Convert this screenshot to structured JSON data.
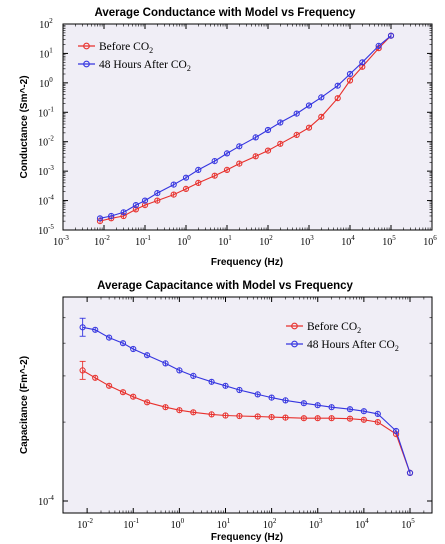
{
  "chart_data": [
    {
      "type": "line",
      "title": "Average Conductance with Model vs Frequency",
      "xlabel": "Frequency (Hz)",
      "ylabel": "Conductance (Sm^-2)",
      "xscale": "log",
      "yscale": "log",
      "x_tick_exponents": [
        "-3",
        "-2",
        "-1",
        "0",
        "1",
        "2",
        "3",
        "4",
        "5",
        "6"
      ],
      "y_tick_exponents": [
        "-5",
        "-4",
        "-3",
        "-2",
        "-1",
        "0",
        "1",
        "2"
      ],
      "xlim": [
        0.001,
        1000000
      ],
      "ylim": [
        1e-05,
        100
      ],
      "legend": "top-left",
      "series": [
        {
          "name": "Before CO2",
          "color": "#e8302c",
          "x": [
            0.008,
            0.015,
            0.03,
            0.06,
            0.1,
            0.2,
            0.5,
            1,
            2,
            5,
            10,
            20,
            50,
            100,
            200,
            500,
            1000,
            2000,
            5000,
            10000,
            20000,
            50000,
            100000
          ],
          "y": [
            2e-05,
            2.5e-05,
            3e-05,
            5e-05,
            7e-05,
            0.0001,
            0.00016,
            0.00025,
            0.0004,
            0.0007,
            0.0011,
            0.0018,
            0.0032,
            0.005,
            0.0085,
            0.017,
            0.03,
            0.07,
            0.3,
            1.2,
            3.5,
            15,
            40
          ]
        },
        {
          "name": "48 Hours After CO2",
          "color": "#3535e0",
          "x": [
            0.008,
            0.015,
            0.03,
            0.06,
            0.1,
            0.2,
            0.5,
            1,
            2,
            5,
            10,
            20,
            50,
            100,
            200,
            500,
            1000,
            2000,
            5000,
            10000,
            20000,
            50000,
            100000
          ],
          "y": [
            2.5e-05,
            3e-05,
            4e-05,
            7e-05,
            0.0001,
            0.00018,
            0.00035,
            0.0006,
            0.0011,
            0.0022,
            0.004,
            0.007,
            0.014,
            0.025,
            0.045,
            0.09,
            0.17,
            0.32,
            0.8,
            2,
            5,
            18,
            40
          ]
        }
      ]
    },
    {
      "type": "line",
      "title": "Average Capacitance with Model vs Frequency",
      "xlabel": "Frequency (Hz)",
      "ylabel": "Capacitance (Fm^-2)",
      "xscale": "log",
      "yscale": "log",
      "x_tick_exponents": [
        "-2",
        "-1",
        "0",
        "1",
        "2",
        "3",
        "4",
        "5"
      ],
      "y_tick_exponents": [
        "-4"
      ],
      "xlim": [
        0.003,
        300000
      ],
      "ylim": [
        9e-05,
        0.0006
      ],
      "legend": "top-right",
      "series": [
        {
          "name": "Before CO2",
          "color": "#e8302c",
          "x": [
            0.008,
            0.015,
            0.03,
            0.06,
            0.1,
            0.2,
            0.5,
            1,
            2,
            5,
            10,
            20,
            50,
            100,
            200,
            500,
            1000,
            2000,
            5000,
            10000,
            20000,
            50000,
            100000
          ],
          "y": [
            0.000315,
            0.000295,
            0.000275,
            0.00026,
            0.00025,
            0.000238,
            0.000228,
            0.000222,
            0.000218,
            0.000214,
            0.000212,
            0.000211,
            0.00021,
            0.000209,
            0.000208,
            0.000207,
            0.000207,
            0.000207,
            0.000206,
            0.000204,
            0.0002,
            0.00018,
            0.000128
          ]
        },
        {
          "name": "48 Hours After CO2",
          "color": "#3535e0",
          "x": [
            0.008,
            0.015,
            0.03,
            0.06,
            0.1,
            0.2,
            0.5,
            1,
            2,
            5,
            10,
            20,
            50,
            100,
            200,
            500,
            1000,
            2000,
            5000,
            10000,
            20000,
            50000,
            100000
          ],
          "y": [
            0.00046,
            0.00045,
            0.00042,
            0.0004,
            0.00038,
            0.00036,
            0.000335,
            0.000315,
            0.0003,
            0.000285,
            0.000275,
            0.000265,
            0.000255,
            0.000248,
            0.000242,
            0.000236,
            0.000232,
            0.000228,
            0.000224,
            0.00022,
            0.000215,
            0.000185,
            0.000128
          ]
        }
      ]
    }
  ],
  "legend_labels": {
    "before_main": "Before CO",
    "after_main": "48 Hours After CO",
    "subscript": "2"
  },
  "tick_base": "10"
}
